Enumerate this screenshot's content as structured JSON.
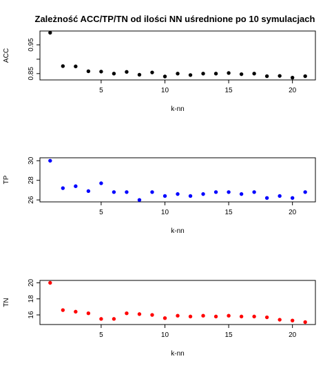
{
  "title": "Zależność ACC/TP/TN od ilości NN uśrednione po 10 symulacjach",
  "chart_data": [
    {
      "type": "scatter",
      "xlabel": "k-nn",
      "ylabel": "ACC",
      "color": "#000000",
      "xlim": [
        0.2,
        21.8
      ],
      "ylim": [
        0.828,
        0.998
      ],
      "xticks": [
        5,
        10,
        15,
        20
      ],
      "yticks": [
        0.85,
        0.9,
        0.95
      ],
      "ytick_labels": [
        "0.85",
        "",
        "0.95"
      ],
      "x": [
        1,
        2,
        3,
        4,
        5,
        6,
        7,
        8,
        9,
        10,
        11,
        12,
        13,
        14,
        15,
        16,
        17,
        18,
        19,
        20,
        21
      ],
      "y": [
        0.992,
        0.876,
        0.875,
        0.858,
        0.857,
        0.85,
        0.856,
        0.846,
        0.854,
        0.84,
        0.85,
        0.845,
        0.85,
        0.85,
        0.852,
        0.848,
        0.85,
        0.841,
        0.842,
        0.836,
        0.841
      ]
    },
    {
      "type": "scatter",
      "xlabel": "k-nn",
      "ylabel": "TP",
      "color": "#0000ff",
      "xlim": [
        0.2,
        21.8
      ],
      "ylim": [
        25.8,
        30.3
      ],
      "xticks": [
        5,
        10,
        15,
        20
      ],
      "yticks": [
        26,
        28,
        30
      ],
      "ytick_labels": [
        "26",
        "28",
        "30"
      ],
      "x": [
        1,
        2,
        3,
        4,
        5,
        6,
        7,
        8,
        9,
        10,
        11,
        12,
        13,
        14,
        15,
        16,
        17,
        18,
        19,
        20,
        21
      ],
      "y": [
        30.0,
        27.2,
        27.4,
        26.9,
        27.7,
        26.8,
        26.8,
        26.0,
        26.8,
        26.4,
        26.6,
        26.4,
        26.6,
        26.8,
        26.8,
        26.6,
        26.8,
        26.2,
        26.4,
        26.2,
        26.8
      ]
    },
    {
      "type": "scatter",
      "xlabel": "k-nn",
      "ylabel": "TN",
      "color": "#ff0000",
      "xlim": [
        0.2,
        21.8
      ],
      "ylim": [
        14.8,
        20.3
      ],
      "xticks": [
        5,
        10,
        15,
        20
      ],
      "yticks": [
        16,
        18,
        20
      ],
      "ytick_labels": [
        "16",
        "18",
        "20"
      ],
      "x": [
        1,
        2,
        3,
        4,
        5,
        6,
        7,
        8,
        9,
        10,
        11,
        12,
        13,
        14,
        15,
        16,
        17,
        18,
        19,
        20,
        21
      ],
      "y": [
        20.0,
        16.6,
        16.4,
        16.2,
        15.5,
        15.5,
        16.2,
        16.1,
        16.0,
        15.6,
        15.9,
        15.8,
        15.9,
        15.8,
        15.9,
        15.8,
        15.8,
        15.7,
        15.4,
        15.3,
        15.1
      ]
    }
  ]
}
